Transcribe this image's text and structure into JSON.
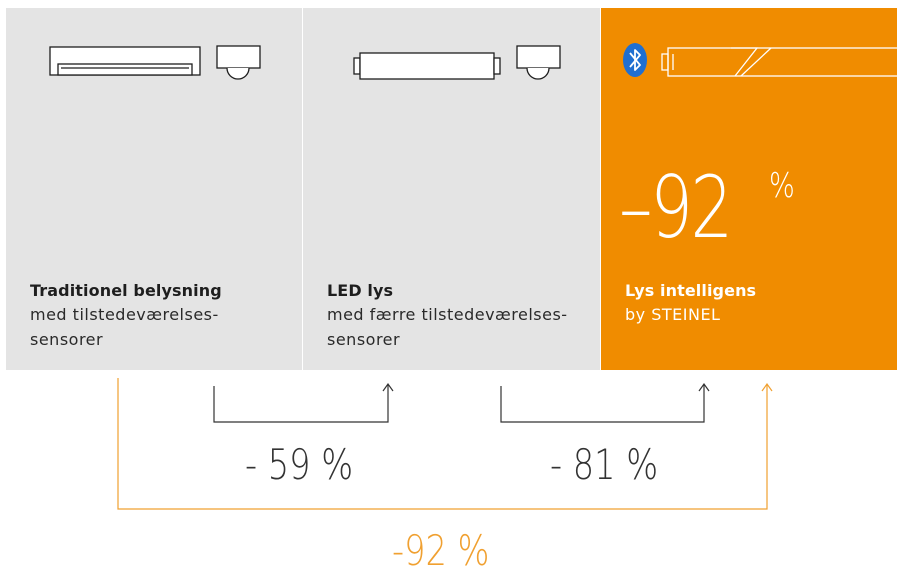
{
  "colors": {
    "panel_gray": "#e4e4e4",
    "accent_orange": "#f08c00",
    "connector_dark": "#333333",
    "connector_orange": "#f0a030",
    "bluetooth_blue": "#1f6fd1"
  },
  "panels": [
    {
      "id": "traditional",
      "title": "Traditionel belysning",
      "subtitle_line1": "med tilstedeværelses-",
      "subtitle_line2": "sensorer",
      "icons": [
        "fluorescent-fixture-icon",
        "presence-sensor-icon"
      ]
    },
    {
      "id": "led",
      "title": "LED lys",
      "subtitle_line1": "med færre tilstedeværelses-",
      "subtitle_line2": "sensorer",
      "icons": [
        "led-tube-icon",
        "presence-sensor-icon"
      ]
    },
    {
      "id": "smart",
      "title": "Lys intelligens",
      "subtitle_line1": "by STEINEL",
      "subtitle_line2": "",
      "icons": [
        "bluetooth-icon",
        "smart-led-tube-icon"
      ],
      "big_value": "–92",
      "big_unit": "%"
    }
  ],
  "savings": {
    "led_vs_traditional": "- 59 %",
    "smart_vs_led": "- 81 %",
    "smart_vs_traditional": "-92 %"
  }
}
